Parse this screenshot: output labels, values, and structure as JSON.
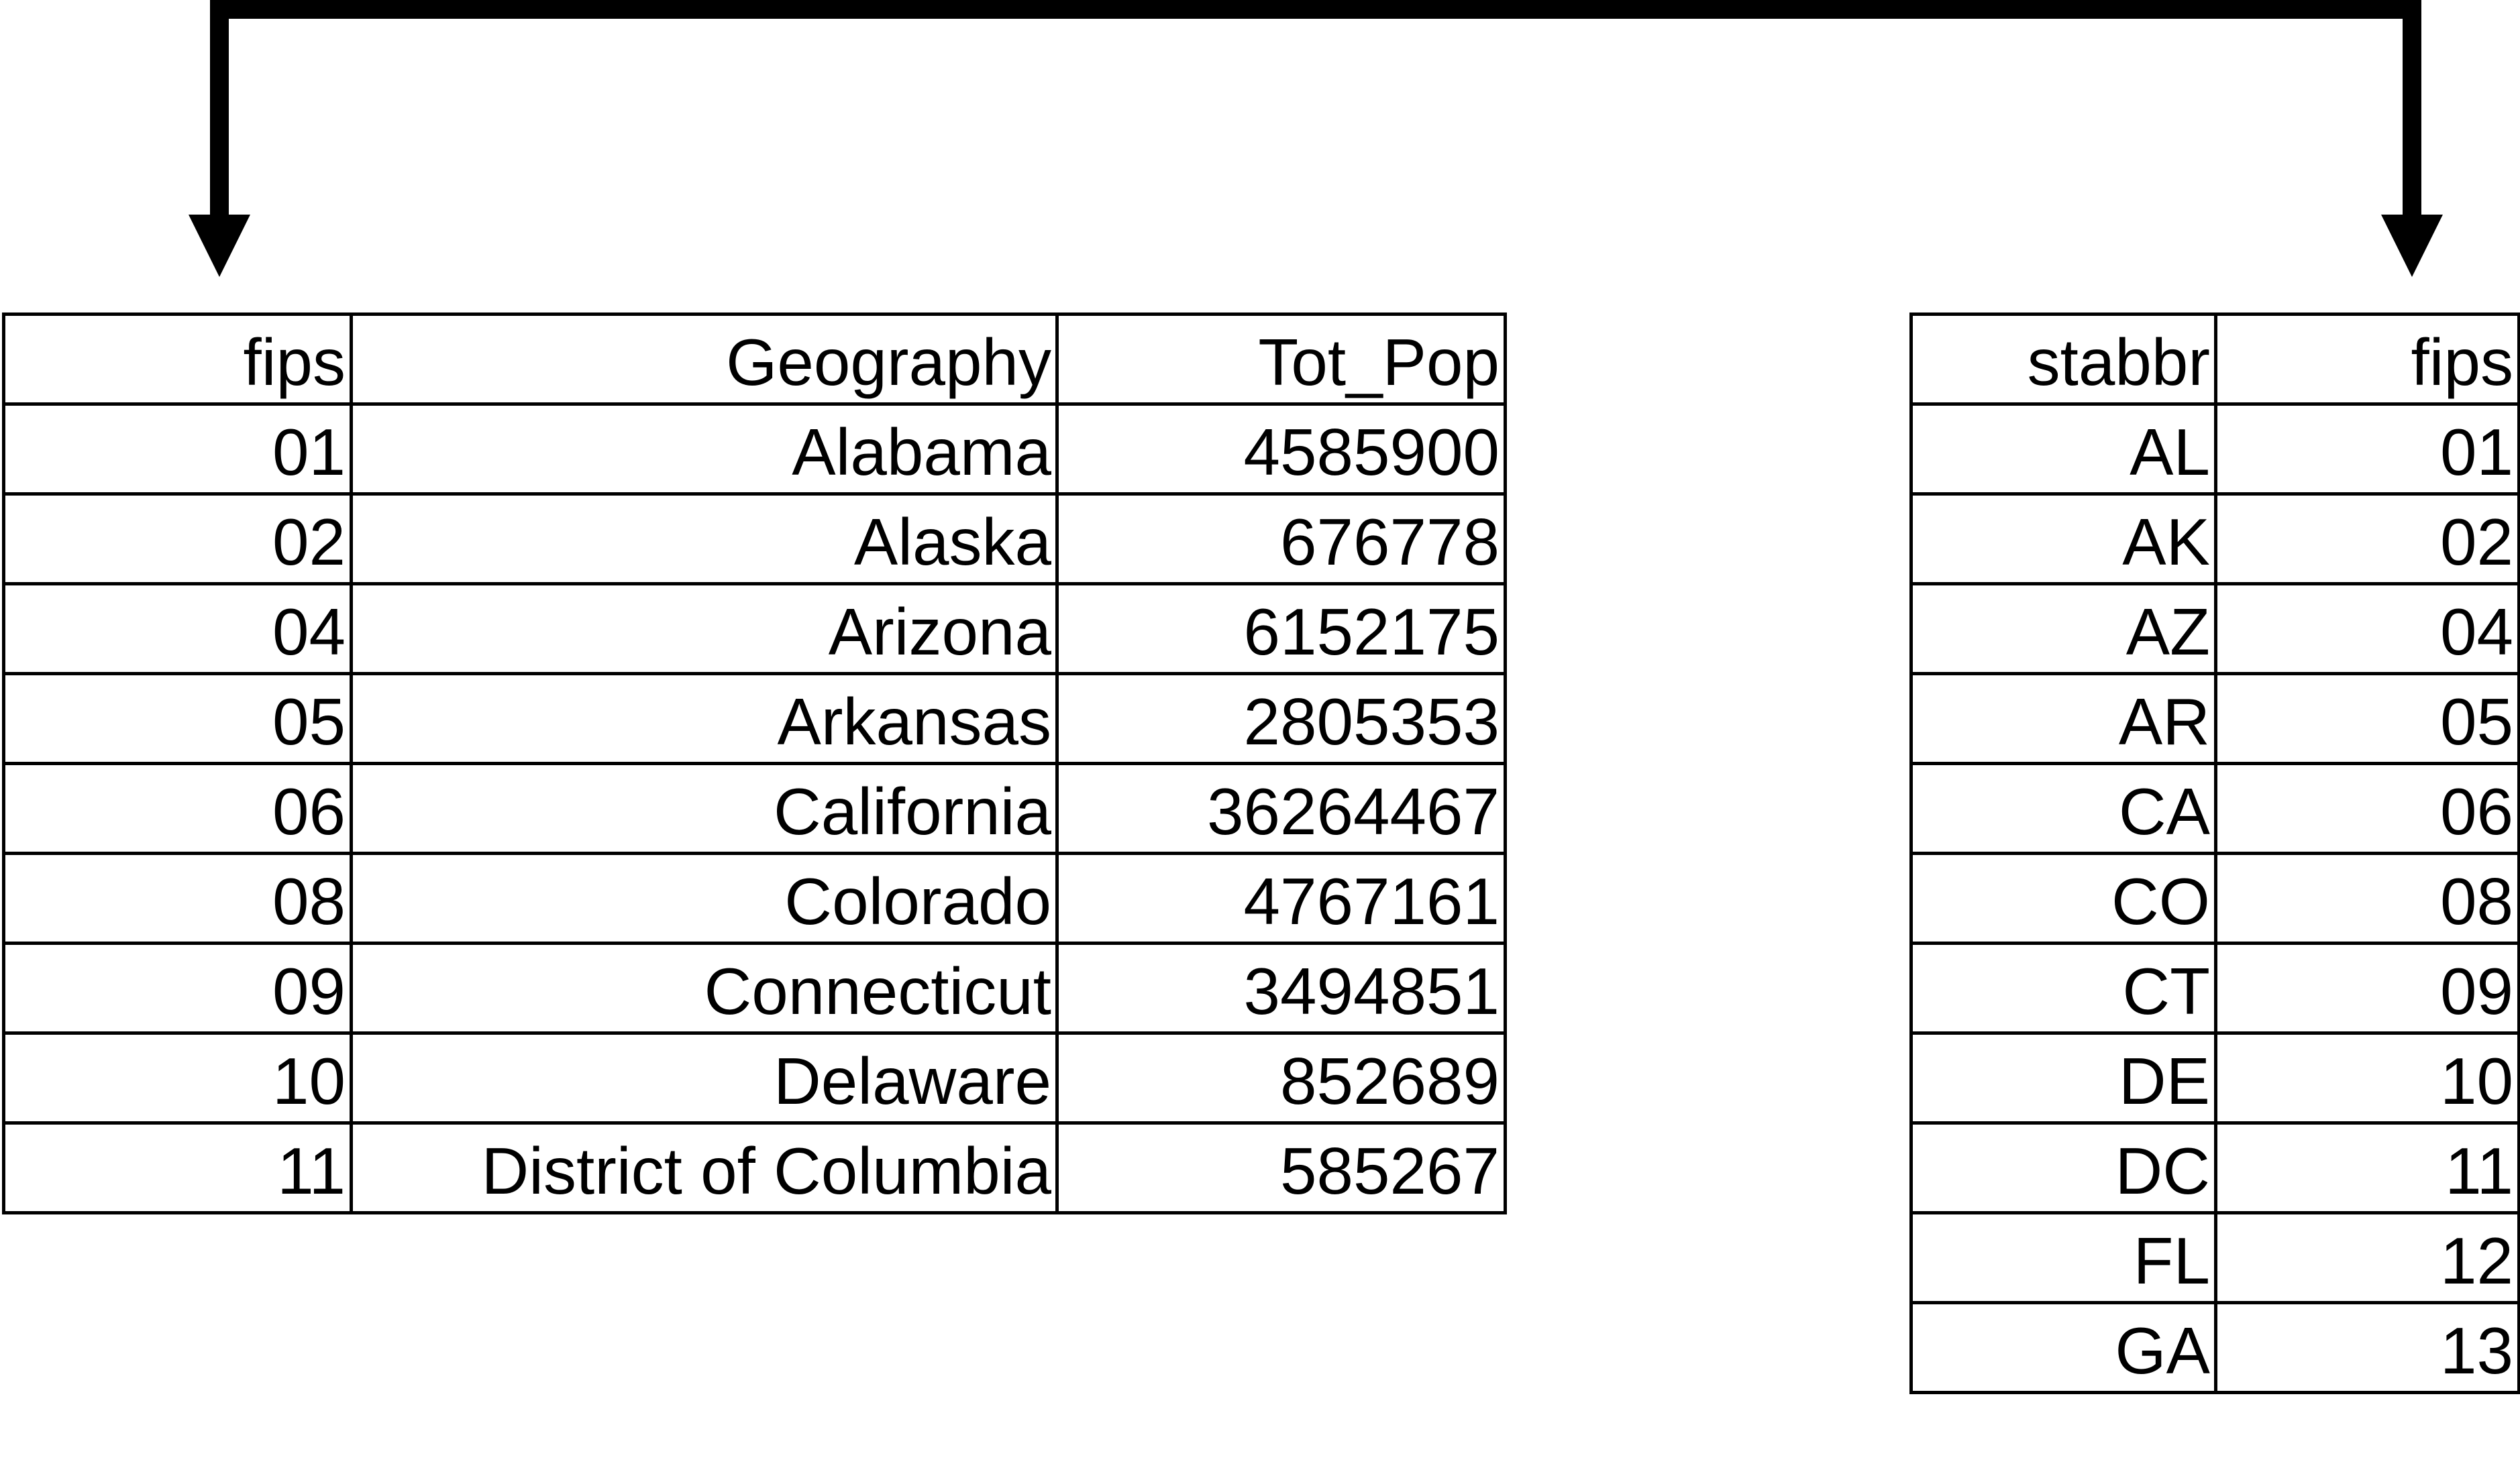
{
  "left_table": {
    "headers": [
      "fips",
      "Geography",
      "Tot_Pop"
    ],
    "rows": [
      [
        "01",
        "Alabama",
        "4585900"
      ],
      [
        "02",
        "Alaska",
        "676778"
      ],
      [
        "04",
        "Arizona",
        "6152175"
      ],
      [
        "05",
        "Arkansas",
        "2805353"
      ],
      [
        "06",
        "California",
        "36264467"
      ],
      [
        "08",
        "Colorado",
        "4767161"
      ],
      [
        "09",
        "Connecticut",
        "3494851"
      ],
      [
        "10",
        "Delaware",
        "852689"
      ],
      [
        "11",
        "District of Columbia",
        "585267"
      ]
    ]
  },
  "right_table": {
    "headers": [
      "stabbr",
      "fips"
    ],
    "rows": [
      [
        "AL",
        "01"
      ],
      [
        "AK",
        "02"
      ],
      [
        "AZ",
        "04"
      ],
      [
        "AR",
        "05"
      ],
      [
        "CA",
        "06"
      ],
      [
        "CO",
        "08"
      ],
      [
        "CT",
        "09"
      ],
      [
        "DE",
        "10"
      ],
      [
        "DC",
        "11"
      ],
      [
        "FL",
        "12"
      ],
      [
        "GA",
        "13"
      ]
    ]
  },
  "connector": {
    "type": "bracket-arrow",
    "links": "left_table.fips to right_table.fips",
    "color": "#000000"
  }
}
